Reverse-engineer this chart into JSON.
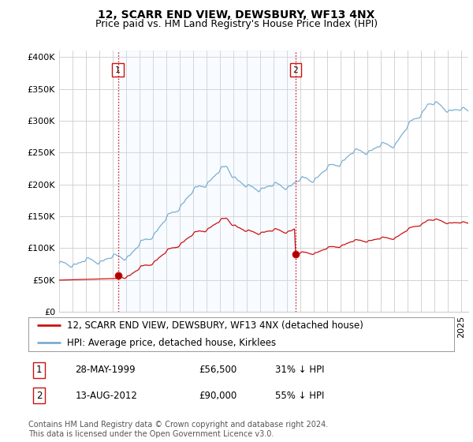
{
  "title": "12, SCARR END VIEW, DEWSBURY, WF13 4NX",
  "subtitle": "Price paid vs. HM Land Registry's House Price Index (HPI)",
  "ylabel_ticks": [
    "£0",
    "£50K",
    "£100K",
    "£150K",
    "£200K",
    "£250K",
    "£300K",
    "£350K",
    "£400K"
  ],
  "ytick_values": [
    0,
    50000,
    100000,
    150000,
    200000,
    250000,
    300000,
    350000,
    400000
  ],
  "ylim": [
    0,
    410000
  ],
  "xlim_start": 1995.0,
  "xlim_end": 2025.5,
  "hpi_color": "#7bafd4",
  "hpi_fill_color": "#ddeeff",
  "price_color": "#cc1111",
  "marker1_date": 1999.38,
  "marker1_price": 56500,
  "marker2_date": 2012.62,
  "marker2_price": 90000,
  "sale1_label": "1",
  "sale2_label": "2",
  "legend_entry1": "12, SCARR END VIEW, DEWSBURY, WF13 4NX (detached house)",
  "legend_entry2": "HPI: Average price, detached house, Kirklees",
  "table_row1": [
    "1",
    "28-MAY-1999",
    "£56,500",
    "31% ↓ HPI"
  ],
  "table_row2": [
    "2",
    "13-AUG-2012",
    "£90,000",
    "55% ↓ HPI"
  ],
  "footnote": "Contains HM Land Registry data © Crown copyright and database right 2024.\nThis data is licensed under the Open Government Licence v3.0.",
  "background_color": "#ffffff",
  "grid_color": "#cccccc",
  "vline_color": "#cc1111",
  "title_fontsize": 10,
  "subtitle_fontsize": 9,
  "tick_fontsize": 8,
  "legend_fontsize": 8.5,
  "table_fontsize": 8.5,
  "footnote_fontsize": 7
}
